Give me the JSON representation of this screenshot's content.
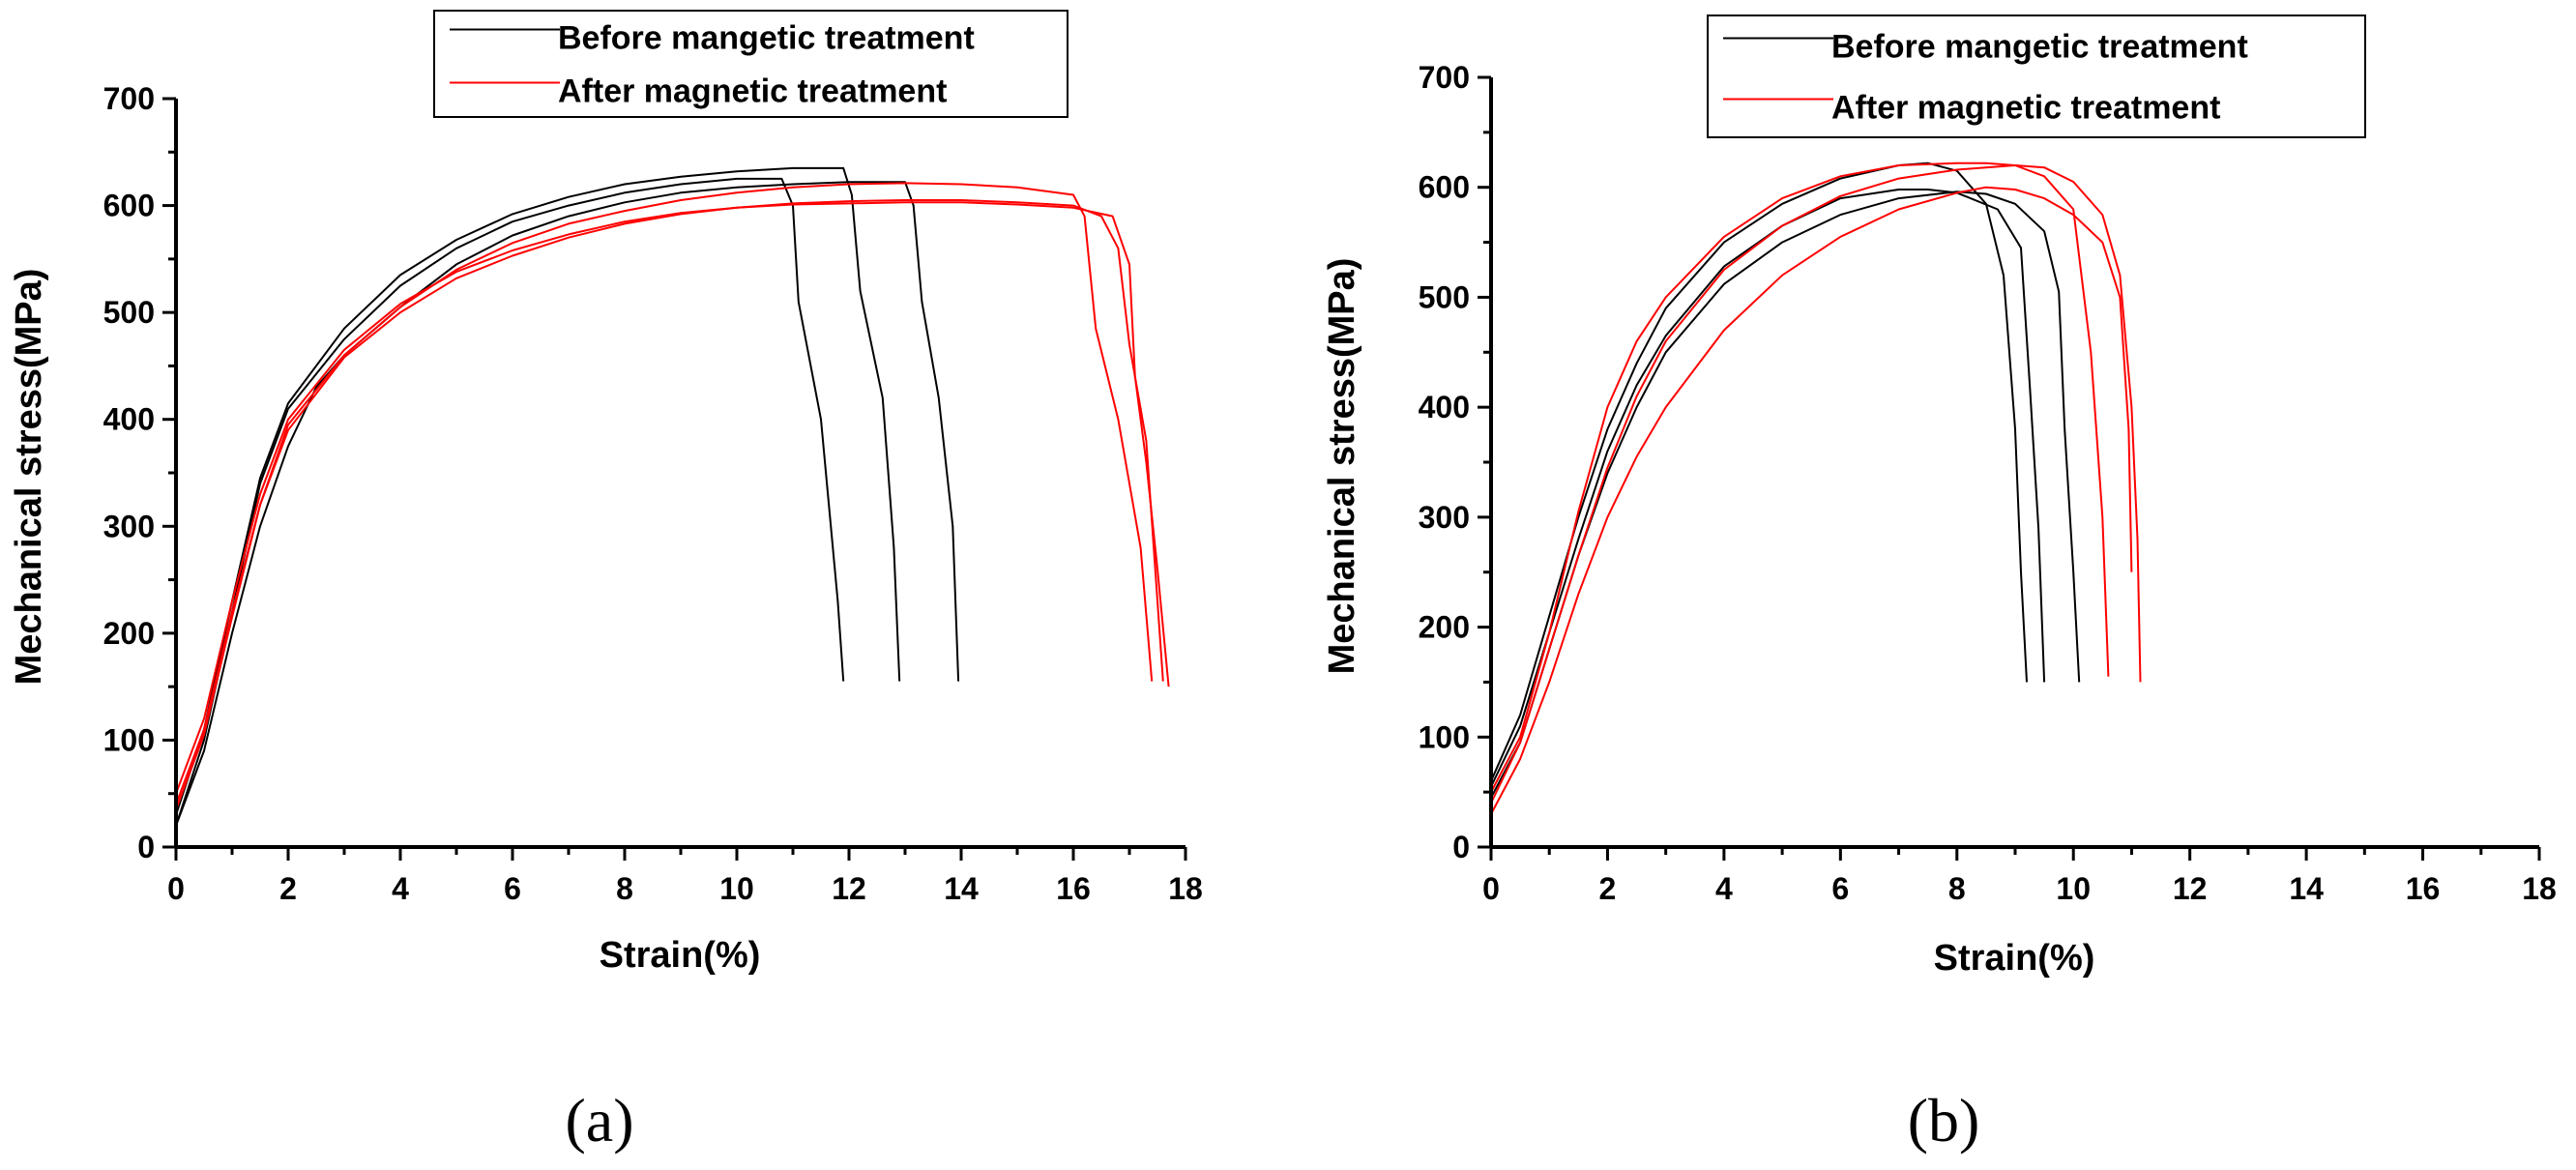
{
  "chart_data": [
    {
      "type": "line",
      "panel_label": "(a)",
      "xlabel": "Strain(%)",
      "ylabel": "Mechanical stress(MPa)",
      "xlim": [
        0,
        18
      ],
      "ylim": [
        0,
        700
      ],
      "x_ticks": [
        0,
        2,
        4,
        6,
        8,
        10,
        12,
        14,
        16,
        18
      ],
      "y_ticks": [
        0,
        100,
        200,
        300,
        400,
        500,
        600,
        700
      ],
      "grid": false,
      "legend_position": "top-center",
      "legend": [
        {
          "label": "Before mangetic treatment",
          "color": "#000000"
        },
        {
          "label": "After magnetic treatment",
          "color": "#ff0000"
        }
      ],
      "series": [
        {
          "name": "Before mangetic treatment",
          "color": "#000000",
          "x": [
            0,
            0.5,
            1,
            1.5,
            2,
            3,
            4,
            5,
            6,
            7,
            8,
            9,
            10,
            10.8,
            11.0,
            11.1,
            11.5,
            11.8,
            11.9
          ],
          "y": [
            20,
            100,
            220,
            340,
            410,
            475,
            525,
            560,
            585,
            600,
            612,
            620,
            625,
            625,
            600,
            510,
            400,
            230,
            155
          ]
        },
        {
          "name": "Before mangetic treatment",
          "color": "#000000",
          "x": [
            0,
            0.5,
            1,
            1.5,
            2,
            3,
            4,
            5,
            6,
            7,
            8,
            9,
            10,
            11,
            11.9,
            12.05,
            12.2,
            12.6,
            12.8,
            12.9
          ],
          "y": [
            30,
            110,
            230,
            345,
            415,
            485,
            535,
            568,
            592,
            608,
            620,
            627,
            632,
            635,
            635,
            610,
            520,
            420,
            280,
            155
          ]
        },
        {
          "name": "Before mangetic treatment",
          "color": "#000000",
          "x": [
            0,
            0.5,
            1,
            1.5,
            2,
            2.5,
            3,
            4,
            5,
            6,
            7,
            8,
            9,
            10,
            11,
            12,
            13,
            13.15,
            13.3,
            13.6,
            13.85,
            13.95
          ],
          "y": [
            20,
            90,
            200,
            300,
            375,
            430,
            460,
            505,
            545,
            572,
            590,
            603,
            612,
            617,
            620,
            622,
            622,
            600,
            510,
            420,
            300,
            155
          ]
        },
        {
          "name": "After magnetic treatment",
          "color": "#ff0000",
          "x": [
            0,
            0.5,
            1,
            1.5,
            2,
            3,
            4,
            5,
            6,
            7,
            8,
            9,
            10,
            11,
            12,
            13,
            14,
            15,
            16,
            16.2,
            16.4,
            16.8,
            17.2,
            17.4
          ],
          "y": [
            40,
            110,
            220,
            320,
            395,
            460,
            505,
            540,
            565,
            583,
            595,
            605,
            612,
            617,
            620,
            621,
            620,
            617,
            610,
            590,
            485,
            400,
            280,
            155
          ]
        },
        {
          "name": "After magnetic treatment",
          "color": "#ff0000",
          "x": [
            0,
            0.5,
            1,
            1.5,
            2,
            3,
            4,
            5,
            6,
            7,
            8,
            9,
            10,
            11,
            12,
            13,
            14,
            15,
            16,
            16.5,
            16.8,
            17.0,
            17.3,
            17.6
          ],
          "y": [
            50,
            120,
            230,
            330,
            400,
            465,
            508,
            538,
            558,
            573,
            585,
            593,
            598,
            602,
            604,
            605,
            605,
            603,
            600,
            590,
            560,
            470,
            380,
            155
          ]
        },
        {
          "name": "After magnetic treatment",
          "color": "#ff0000",
          "x": [
            0,
            0.5,
            1,
            1.5,
            2,
            3,
            4,
            5,
            6,
            7,
            8,
            9,
            10,
            11,
            12,
            13,
            14,
            15,
            16,
            16.7,
            17.0,
            17.1,
            17.3,
            17.5,
            17.7
          ],
          "y": [
            35,
            105,
            215,
            320,
            390,
            458,
            500,
            532,
            553,
            570,
            583,
            592,
            598,
            601,
            602,
            603,
            603,
            601,
            598,
            590,
            545,
            440,
            360,
            260,
            150
          ]
        }
      ]
    },
    {
      "type": "line",
      "panel_label": "(b)",
      "xlabel": "Strain(%)",
      "ylabel": "Mechanical stress(MPa)",
      "xlim": [
        0,
        18
      ],
      "ylim": [
        0,
        700
      ],
      "x_ticks": [
        0,
        2,
        4,
        6,
        8,
        10,
        12,
        14,
        16,
        18
      ],
      "y_ticks": [
        0,
        100,
        200,
        300,
        400,
        500,
        600,
        700
      ],
      "grid": false,
      "legend_position": "top-center",
      "legend": [
        {
          "label": "Before mangetic treatment",
          "color": "#000000"
        },
        {
          "label": "After magnetic treatment",
          "color": "#ff0000"
        }
      ],
      "series": [
        {
          "name": "Before mangetic treatment",
          "color": "#000000",
          "x": [
            0,
            0.5,
            1,
            1.5,
            2,
            2.5,
            3,
            4,
            5,
            6,
            7,
            7.5,
            8,
            8.5,
            8.8,
            9.0,
            9.1,
            9.2
          ],
          "y": [
            60,
            120,
            210,
            300,
            380,
            440,
            490,
            550,
            585,
            608,
            620,
            622,
            615,
            585,
            520,
            380,
            250,
            150
          ]
        },
        {
          "name": "Before mangetic treatment",
          "color": "#000000",
          "x": [
            0,
            0.5,
            1,
            1.5,
            2,
            2.5,
            3,
            4,
            5,
            6,
            7,
            7.5,
            8,
            8.7,
            9.1,
            9.25,
            9.4,
            9.5
          ],
          "y": [
            55,
            110,
            195,
            280,
            360,
            420,
            465,
            528,
            565,
            590,
            598,
            598,
            595,
            580,
            545,
            420,
            290,
            150
          ]
        },
        {
          "name": "Before mangetic treatment",
          "color": "#000000",
          "x": [
            0,
            0.5,
            1,
            1.5,
            2,
            2.5,
            3,
            4,
            5,
            6,
            7,
            8,
            8.5,
            9.0,
            9.5,
            9.75,
            9.85,
            10.0,
            10.1
          ],
          "y": [
            45,
            95,
            180,
            265,
            340,
            400,
            450,
            512,
            550,
            575,
            590,
            596,
            594,
            585,
            560,
            505,
            380,
            250,
            150
          ]
        },
        {
          "name": "After magnetic treatment",
          "color": "#ff0000",
          "x": [
            0,
            0.5,
            1,
            1.5,
            2,
            2.5,
            3,
            4,
            5,
            6,
            7,
            8,
            8.5,
            9,
            9.5,
            10,
            10.3,
            10.5,
            10.6
          ],
          "y": [
            50,
            100,
            195,
            305,
            400,
            460,
            500,
            555,
            590,
            610,
            620,
            622,
            622,
            620,
            610,
            580,
            450,
            300,
            155
          ]
        },
        {
          "name": "After magnetic treatment",
          "color": "#ff0000",
          "x": [
            0,
            0.5,
            1,
            1.5,
            2,
            2.5,
            3,
            4,
            5,
            6,
            7,
            8,
            8.5,
            9,
            9.5,
            10,
            10.5,
            10.8,
            10.95,
            11.0
          ],
          "y": [
            30,
            80,
            150,
            230,
            300,
            355,
            400,
            470,
            520,
            555,
            580,
            595,
            600,
            598,
            590,
            575,
            550,
            500,
            380,
            250
          ]
        },
        {
          "name": "After magnetic treatment",
          "color": "#ff0000",
          "x": [
            0,
            0.5,
            1,
            1.5,
            2,
            2.5,
            3,
            4,
            5,
            6,
            7,
            8,
            8.5,
            9,
            9.5,
            10,
            10.5,
            10.8,
            11.0,
            11.1,
            11.15
          ],
          "y": [
            40,
            95,
            180,
            265,
            345,
            410,
            460,
            525,
            565,
            592,
            608,
            616,
            618,
            620,
            618,
            605,
            575,
            520,
            400,
            280,
            150
          ]
        }
      ]
    }
  ]
}
